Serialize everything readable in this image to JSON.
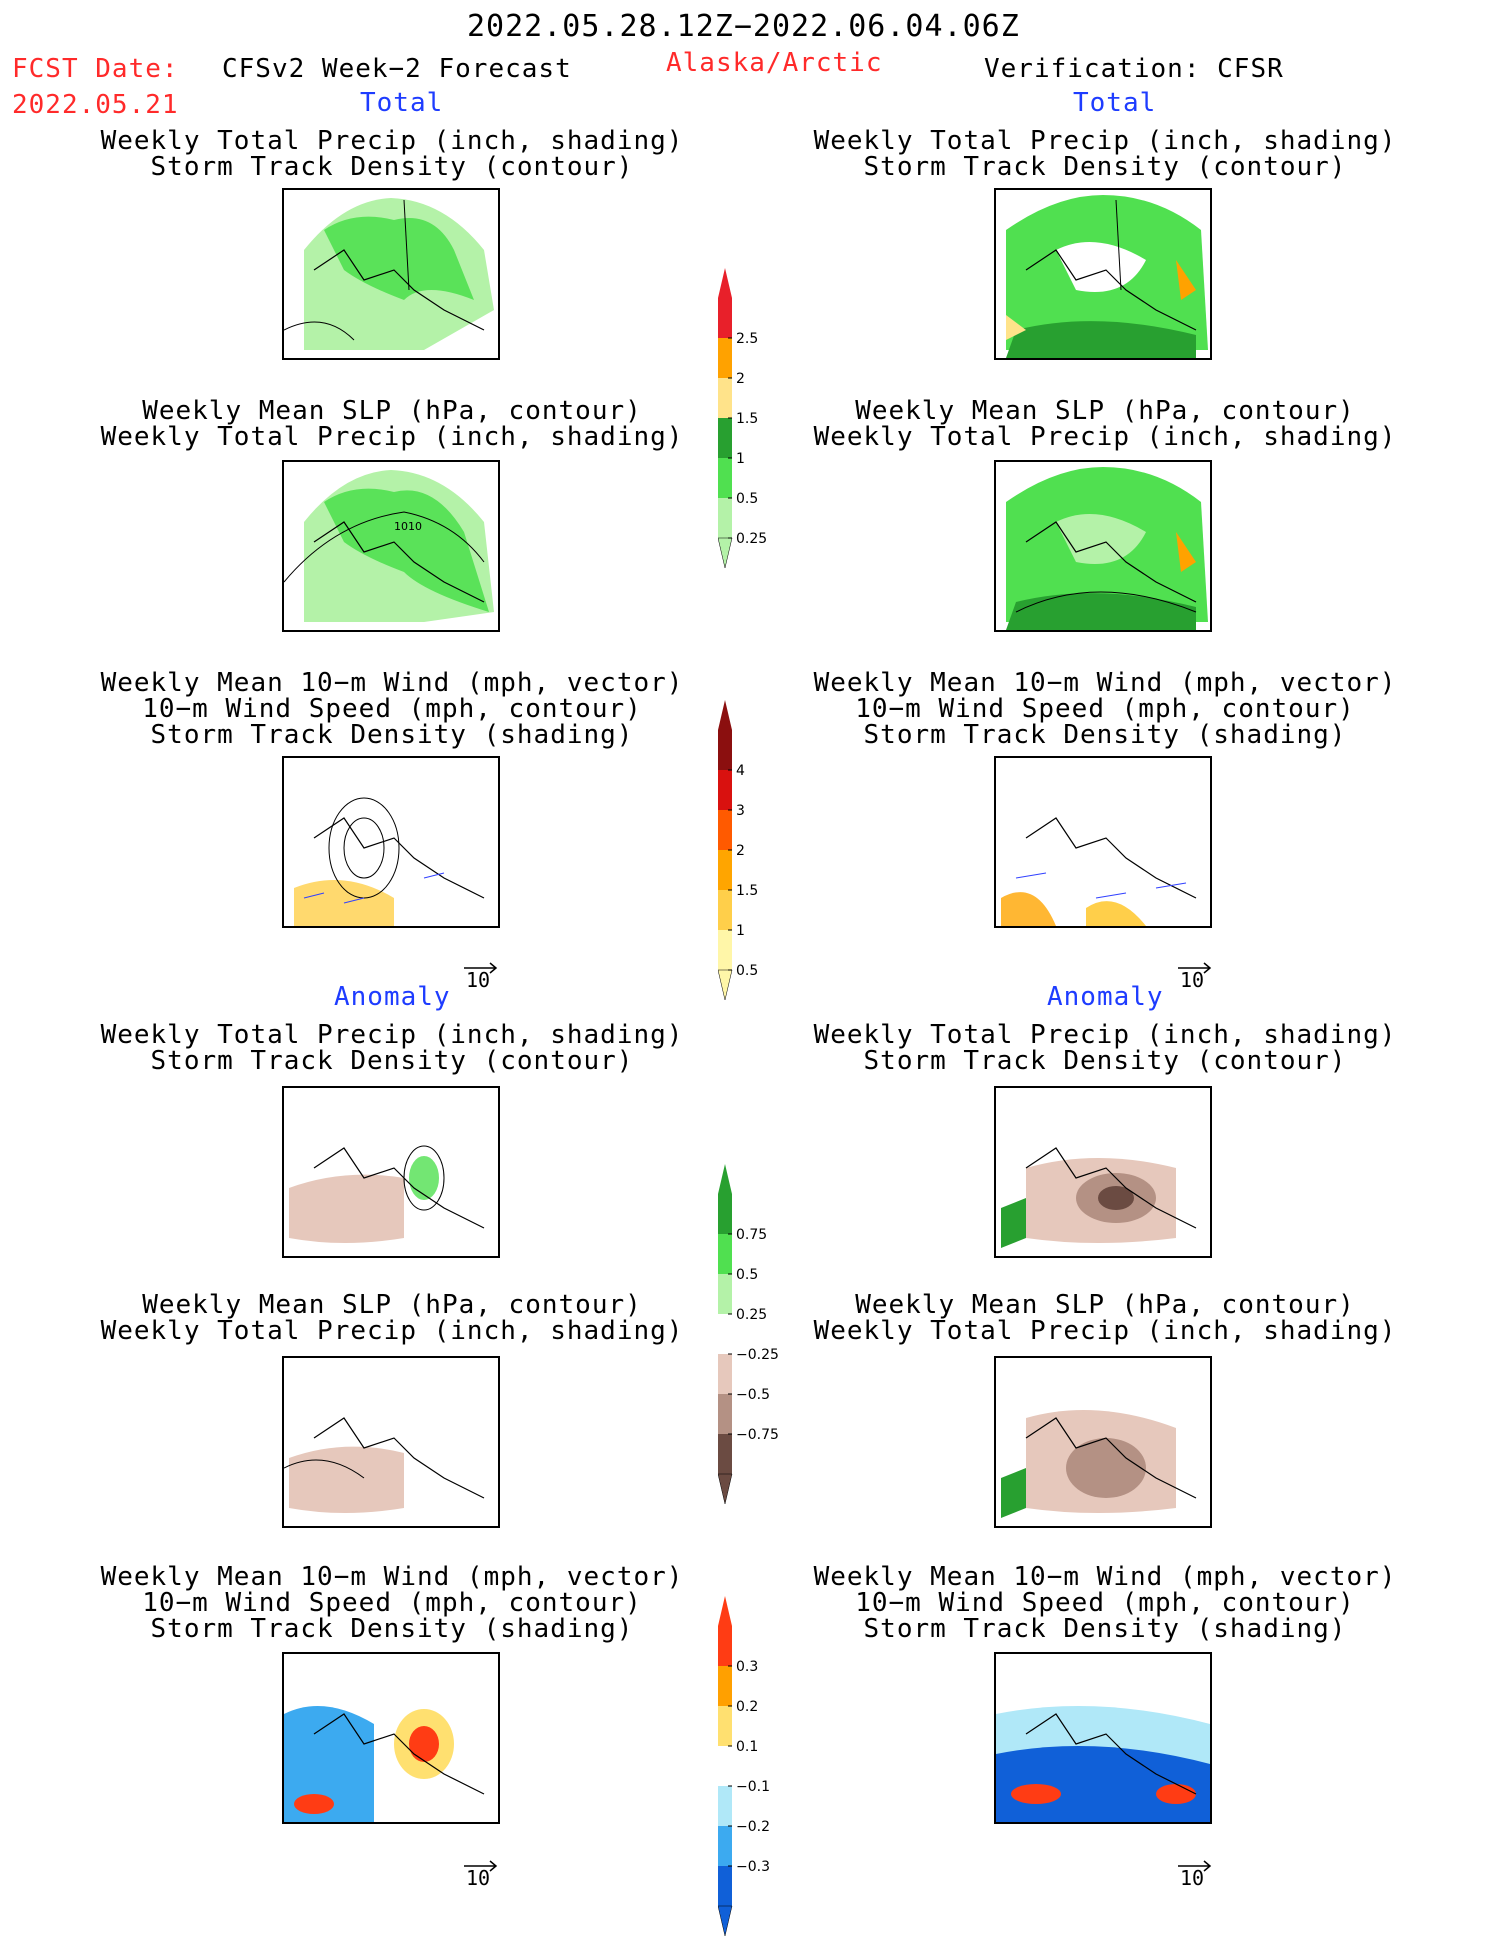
{
  "header": {
    "date_range": "2022.05.28.12Z−2022.06.04.06Z",
    "fcst_label": "FCST Date:",
    "fcst_date": "2022.05.21",
    "left_title": "CFSv2 Week−2 Forecast",
    "region": "Alaska/Arctic",
    "right_title": "Verification: CFSR"
  },
  "sections": {
    "total": "Total",
    "anomaly": "Anomaly"
  },
  "captions": {
    "precip_storm": [
      "Weekly Total Precip (inch, shading)",
      "Storm Track Density (contour)"
    ],
    "slp_precip": [
      "Weekly Mean SLP (hPa, contour)",
      "Weekly Total Precip (inch, shading)"
    ],
    "wind_storm": [
      "Weekly Mean 10−m Wind (mph, vector)",
      "10−m Wind Speed (mph, contour)",
      "Storm Track Density (shading)"
    ]
  },
  "panel_labels": {
    "slp_contour": "1010",
    "vector_ref": "10"
  },
  "colorbars": {
    "precip_total": {
      "ticks": [
        "2.5",
        "2",
        "1.5",
        "1",
        "0.5",
        "0.25"
      ],
      "colors": [
        "#e8202a",
        "#ffa200",
        "#ffe38a",
        "#28a030",
        "#50e050",
        "#b4f2a8"
      ]
    },
    "storm_total": {
      "ticks": [
        "4",
        "3",
        "2",
        "1.5",
        "1",
        "0.5"
      ],
      "colors": [
        "#8b0f0f",
        "#d9110f",
        "#ff5a00",
        "#ffa500",
        "#ffcf4a",
        "#fff6a8"
      ]
    },
    "precip_anom": {
      "ticks": [
        "0.75",
        "0.5",
        "0.25",
        "−0.25",
        "−0.5",
        "−0.75"
      ],
      "colors": [
        "#28a030",
        "#50e050",
        "#b4f2a8",
        "#ffffff",
        "#e6c8bc",
        "#b49184",
        "#6b4b42"
      ]
    },
    "storm_anom": {
      "ticks": [
        "0.3",
        "0.2",
        "0.1",
        "−0.1",
        "−0.2",
        "−0.3"
      ],
      "colors": [
        "#ff3c14",
        "#ffa000",
        "#ffe070",
        "#ffffff",
        "#b0e8f8",
        "#3caaf0",
        "#1060d8"
      ]
    }
  },
  "icons": {
    "vector_arrow": "right-arrow-icon"
  }
}
